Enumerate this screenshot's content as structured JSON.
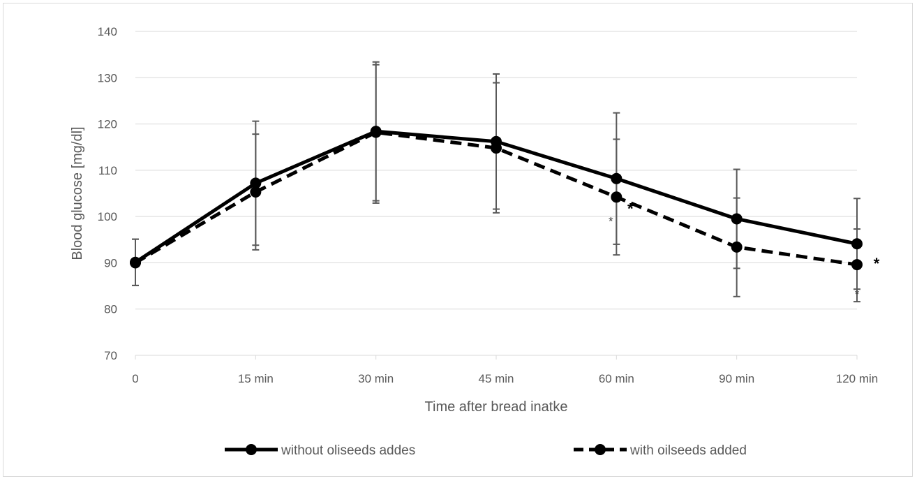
{
  "chart_data": {
    "type": "line",
    "title": "",
    "xlabel": "Time after bread inatke",
    "ylabel": "Blood glucose [mg/dl]",
    "ylim": [
      70,
      140
    ],
    "yticks": [
      70,
      80,
      90,
      100,
      110,
      120,
      130,
      140
    ],
    "grid": true,
    "categories": [
      "0",
      "15 min",
      "30 min",
      "45 min",
      "60 min",
      "90 min",
      "120 min"
    ],
    "series": [
      {
        "name": "without oliseeds addes",
        "style": "solid",
        "values": [
          90.1,
          107.2,
          118.4,
          116.2,
          108.2,
          99.5,
          94.1
        ],
        "error_upper": [
          95.1,
          120.6,
          133.4,
          130.8,
          122.4,
          110.2,
          103.9
        ],
        "error_lower": [
          85.1,
          93.8,
          103.4,
          101.6,
          94.0,
          88.8,
          84.3
        ],
        "color": "#000000"
      },
      {
        "name": "with oilseeds added",
        "style": "dashed",
        "values": [
          90.0,
          105.3,
          118.2,
          114.8,
          104.2,
          93.4,
          89.6
        ],
        "error_upper": [
          95.1,
          117.8,
          132.8,
          128.9,
          116.7,
          104.0,
          97.3
        ],
        "error_lower": [
          85.1,
          92.8,
          102.9,
          100.8,
          91.7,
          82.7,
          81.6
        ],
        "color": "#000000"
      }
    ],
    "annotations": [
      {
        "text": "*",
        "category": "60 min",
        "series": "with oilseeds added"
      },
      {
        "text": "*",
        "category": "60 min",
        "series": "without oliseeds addes"
      },
      {
        "text": "*",
        "category": "120 min",
        "series": "with oilseeds added"
      },
      {
        "text": "*",
        "category": "120 min",
        "series": "without oliseeds addes"
      }
    ],
    "legend_position": "bottom"
  }
}
